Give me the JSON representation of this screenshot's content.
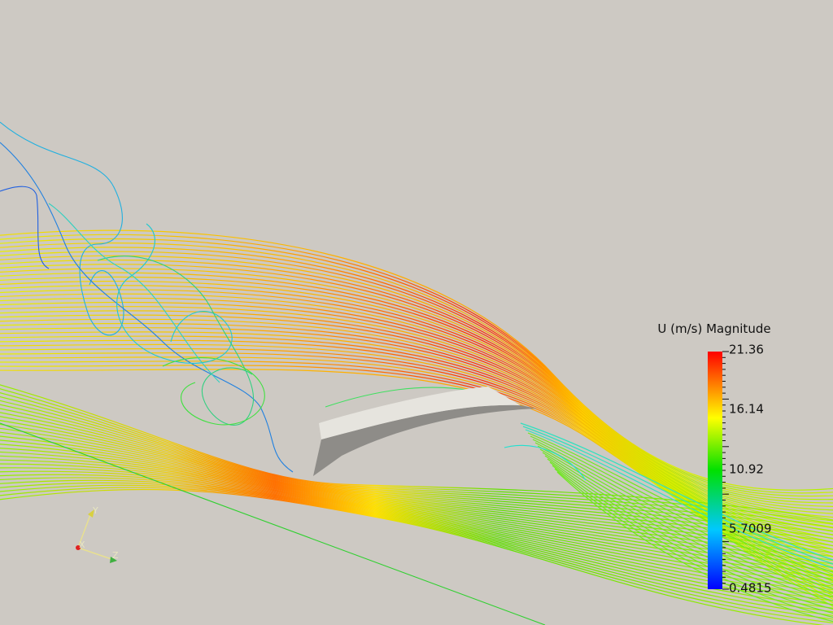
{
  "colorbar": {
    "title": "U (m/s) Magnitude",
    "labels": [
      "21.36",
      "16.14",
      "10.92",
      "5.7009",
      "0.4815"
    ]
  },
  "axes": {
    "x": "X",
    "y": "Y",
    "z": "Z"
  }
}
